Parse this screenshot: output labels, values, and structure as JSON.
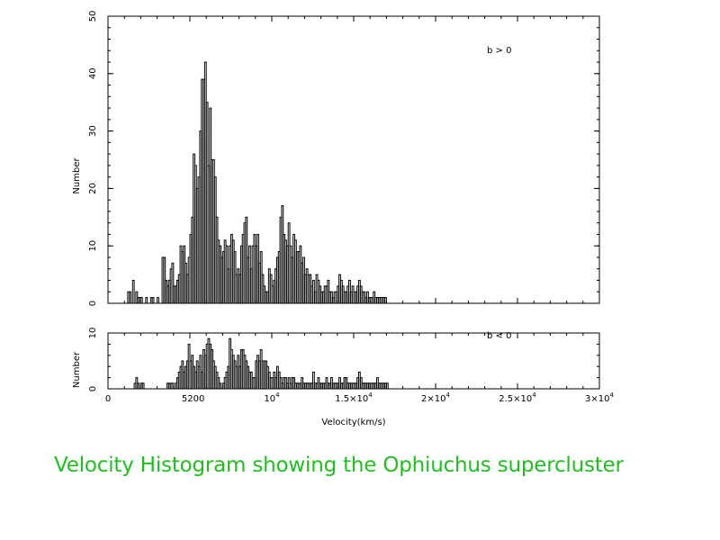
{
  "caption": "Velocity Histogram showing the Ophiuchus supercluster",
  "chart_data": [
    {
      "type": "bar",
      "panel": "upper",
      "annotation": "b > 0",
      "ylabel": "Number",
      "xlabel": "",
      "xlim": [
        0,
        30000
      ],
      "ylim": [
        0,
        50
      ],
      "yticks": [
        "0",
        "10",
        "20",
        "30",
        "40",
        "50"
      ],
      "bin_width_kms": 100,
      "x_start_kms": 1000,
      "values": [
        0,
        0,
        2,
        2,
        0,
        4,
        0,
        2,
        1,
        1,
        1,
        0,
        0,
        1,
        0,
        0,
        1,
        1,
        0,
        0,
        1,
        0,
        0,
        8,
        8,
        4,
        3,
        4,
        6,
        7,
        3,
        3,
        4,
        5,
        10,
        9,
        10,
        7,
        5,
        8,
        12,
        15,
        26,
        24,
        20,
        22,
        30,
        39,
        39,
        42,
        35,
        24,
        34,
        25,
        25,
        22,
        15,
        11,
        10,
        8,
        9,
        11,
        10,
        6,
        10,
        12,
        11,
        9,
        5,
        6,
        5,
        10,
        12,
        14,
        15,
        8,
        10,
        6,
        10,
        12,
        10,
        12,
        7,
        9,
        5,
        3,
        2,
        2,
        6,
        5,
        3,
        4,
        6,
        8,
        9,
        15,
        17,
        12,
        11,
        10,
        14,
        10,
        8,
        12,
        11,
        9,
        9,
        10,
        7,
        8,
        5,
        6,
        5,
        5,
        3,
        4,
        2,
        5,
        4,
        3,
        2,
        2,
        3,
        3,
        4,
        2,
        2,
        1,
        2,
        2,
        3,
        5,
        4,
        3,
        2,
        2,
        3,
        4,
        2,
        3,
        2,
        2,
        3,
        4,
        3,
        2,
        2,
        1,
        2,
        1,
        1,
        1,
        2,
        1,
        1,
        1,
        1,
        1,
        1,
        1
      ]
    },
    {
      "type": "bar",
      "panel": "lower",
      "annotation": "b < 0",
      "ylabel": "Number",
      "xlabel": "Velocity(km/s)",
      "xlim": [
        0,
        30000
      ],
      "ylim": [
        0,
        10
      ],
      "yticks": [
        "0",
        "10"
      ],
      "xticks": [
        {
          "v": 0,
          "label": "0"
        },
        {
          "v": 5200,
          "label": "5200"
        },
        {
          "v": 10000,
          "label": "10",
          "exp": "4"
        },
        {
          "v": 15000,
          "label": "1.5×10",
          "exp": "4"
        },
        {
          "v": 20000,
          "label": "2×10",
          "exp": "4"
        },
        {
          "v": 25000,
          "label": "2.5×10",
          "exp": "4"
        },
        {
          "v": 30000,
          "label": "3×10",
          "exp": "4"
        }
      ],
      "bin_width_kms": 100,
      "x_start_kms": 1000,
      "values": [
        0,
        0,
        0,
        0,
        0,
        0,
        1,
        2,
        1,
        0,
        1,
        1,
        0,
        0,
        0,
        0,
        0,
        0,
        0,
        0,
        0,
        0,
        0,
        0,
        0,
        0,
        1,
        1,
        1,
        1,
        0,
        1,
        2,
        3,
        4,
        5,
        3,
        4,
        5,
        8,
        5,
        6,
        4,
        3,
        5,
        4,
        6,
        3,
        7,
        6,
        8,
        9,
        8,
        7,
        5,
        4,
        3,
        2,
        1,
        0,
        1,
        2,
        3,
        4,
        9,
        7,
        6,
        5,
        4,
        6,
        4,
        7,
        7,
        6,
        5,
        4,
        3,
        3,
        2,
        2,
        5,
        6,
        5,
        7,
        5,
        5,
        5,
        4,
        3,
        2,
        2,
        3,
        2,
        4,
        3,
        2,
        1,
        2,
        2,
        1,
        2,
        1,
        2,
        2,
        1,
        1,
        1,
        1,
        2,
        1,
        1,
        1,
        1,
        1,
        1,
        3,
        1,
        1,
        2,
        1,
        1,
        1,
        1,
        2,
        1,
        1,
        2,
        1,
        1,
        1,
        1,
        2,
        1,
        1,
        2,
        2,
        1,
        1,
        1,
        1,
        1,
        1,
        2,
        3,
        2,
        1,
        1,
        1,
        1,
        1,
        1,
        1,
        1,
        1,
        2,
        1,
        1,
        1,
        1,
        1,
        1
      ]
    }
  ]
}
